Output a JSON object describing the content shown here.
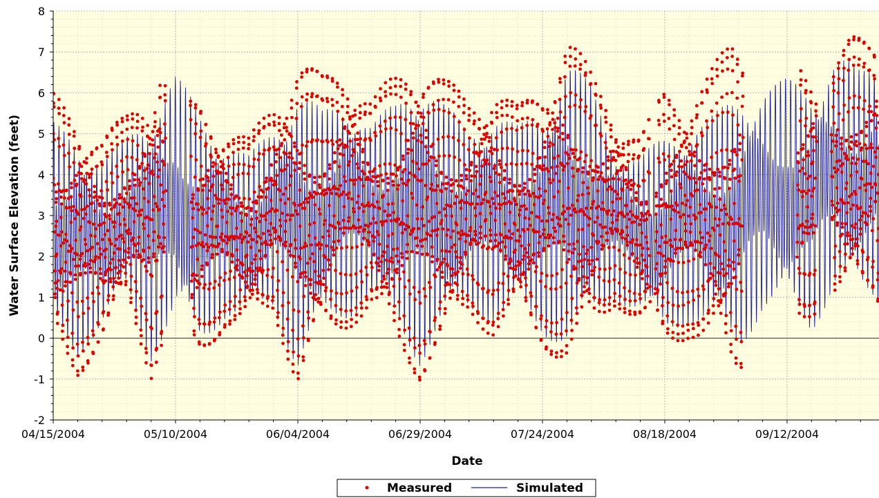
{
  "chart_data": {
    "type": "scatter",
    "title": "",
    "xlabel": "Date",
    "ylabel": "Water Surface Elevation (feet)",
    "x_range": [
      "04/15/2004",
      "10/05/2004"
    ],
    "ylim": [
      -2,
      8
    ],
    "y_ticks": [
      "-2",
      "-1",
      "0",
      "1",
      "2",
      "3",
      "4",
      "5",
      "6",
      "7",
      "8"
    ],
    "x_ticks": [
      "04/15/2004",
      "05/10/2004",
      "06/04/2004",
      "06/29/2004",
      "07/24/2004",
      "08/18/2004",
      "09/12/2004"
    ],
    "x_tick_dates": [
      "2004-04-15",
      "2004-05-10",
      "2004-06-04",
      "2004-06-29",
      "2004-07-24",
      "2004-08-18",
      "2004-09-12"
    ],
    "grid": true,
    "legend_position": "bottom-center",
    "plot_background": "#fffee0",
    "series": [
      {
        "name": "Measured",
        "style": "points",
        "color": "#e00000",
        "envelope_dates": [
          "2004-04-15",
          "2004-04-20",
          "2004-04-25",
          "2004-04-30",
          "2004-05-05",
          "2004-05-07",
          "2004-05-10",
          "2004-05-15",
          "2004-05-20",
          "2004-05-25",
          "2004-05-30",
          "2004-06-04",
          "2004-06-09",
          "2004-06-14",
          "2004-06-19",
          "2004-06-24",
          "2004-06-29",
          "2004-07-04",
          "2004-07-09",
          "2004-07-14",
          "2004-07-19",
          "2004-07-24",
          "2004-07-29",
          "2004-08-03",
          "2004-08-08",
          "2004-08-13",
          "2004-08-18",
          "2004-08-23",
          "2004-08-28",
          "2004-09-01",
          "2004-09-15",
          "2004-09-20",
          "2004-09-25",
          "2004-09-30",
          "2004-10-05"
        ],
        "envelope_high": [
          6.0,
          5.6,
          5.0,
          5.5,
          6.3,
          7.0,
          5.8,
          5.9,
          5.3,
          4.9,
          5.9,
          7.0,
          6.5,
          6.8,
          5.9,
          6.5,
          7.2,
          6.4,
          5.9,
          6.3,
          5.7,
          6.3,
          7.6,
          6.5,
          5.6,
          5.0,
          6.2,
          6.0,
          6.7,
          7.4,
          6.8,
          6.5,
          7.4,
          7.5,
          7.7
        ],
        "envelope_low": [
          -0.3,
          -1.0,
          -0.2,
          0.8,
          -1.0,
          -0.3,
          -0.5,
          -0.6,
          0.2,
          0.2,
          0.6,
          -1.3,
          -0.2,
          0.2,
          0.6,
          -0.3,
          -1.1,
          -0.2,
          0.5,
          0.0,
          0.5,
          -0.3,
          -0.7,
          0.0,
          0.8,
          0.2,
          -0.3,
          0.0,
          -0.3,
          -1.1,
          0.2,
          0.9,
          0.9,
          1.0,
          -1.0
        ],
        "gaps": [
          [
            "2004-05-08",
            "2004-05-13"
          ],
          [
            "2004-08-15",
            "2004-08-16"
          ],
          [
            "2004-09-03",
            "2004-09-14"
          ],
          [
            "2004-09-18",
            "2004-09-21"
          ]
        ]
      },
      {
        "name": "Simulated",
        "style": "line",
        "color": "#1a1aaa",
        "envelope_dates": [
          "2004-04-15",
          "2004-04-20",
          "2004-04-25",
          "2004-04-30",
          "2004-05-05",
          "2004-05-10",
          "2004-05-15",
          "2004-05-20",
          "2004-05-25",
          "2004-05-30",
          "2004-06-04",
          "2004-06-09",
          "2004-06-14",
          "2004-06-19",
          "2004-06-24",
          "2004-06-29",
          "2004-07-04",
          "2004-07-09",
          "2004-07-14",
          "2004-07-19",
          "2004-07-24",
          "2004-07-29",
          "2004-08-03",
          "2004-08-08",
          "2004-08-13",
          "2004-08-18",
          "2004-08-23",
          "2004-08-28",
          "2004-09-02",
          "2004-09-07",
          "2004-09-12",
          "2004-09-17",
          "2004-09-22",
          "2004-09-27",
          "2004-10-02",
          "2004-10-05"
        ],
        "envelope_high": [
          5.3,
          5.1,
          4.4,
          5.0,
          5.8,
          6.5,
          5.6,
          5.0,
          4.5,
          5.3,
          6.2,
          5.6,
          6.1,
          5.3,
          5.8,
          6.7,
          5.8,
          5.2,
          5.7,
          5.2,
          5.7,
          7.0,
          6.2,
          4.8,
          4.5,
          5.0,
          5.4,
          5.5,
          6.0,
          6.3,
          6.4,
          6.3,
          7.0,
          6.6,
          7.2,
          6.9
        ],
        "envelope_low": [
          0.0,
          -0.5,
          0.2,
          1.0,
          -0.6,
          0.4,
          -0.2,
          0.4,
          0.4,
          0.7,
          -0.9,
          0.2,
          0.4,
          0.8,
          0.2,
          -0.7,
          0.2,
          0.6,
          0.3,
          0.6,
          0.0,
          -0.3,
          0.2,
          0.9,
          0.5,
          0.0,
          0.3,
          0.2,
          -0.4,
          0.6,
          0.6,
          0.1,
          1.2,
          0.9,
          0.8,
          0.0
        ]
      }
    ]
  },
  "legend": {
    "measured_label": "Measured",
    "simulated_label": "Simulated"
  }
}
